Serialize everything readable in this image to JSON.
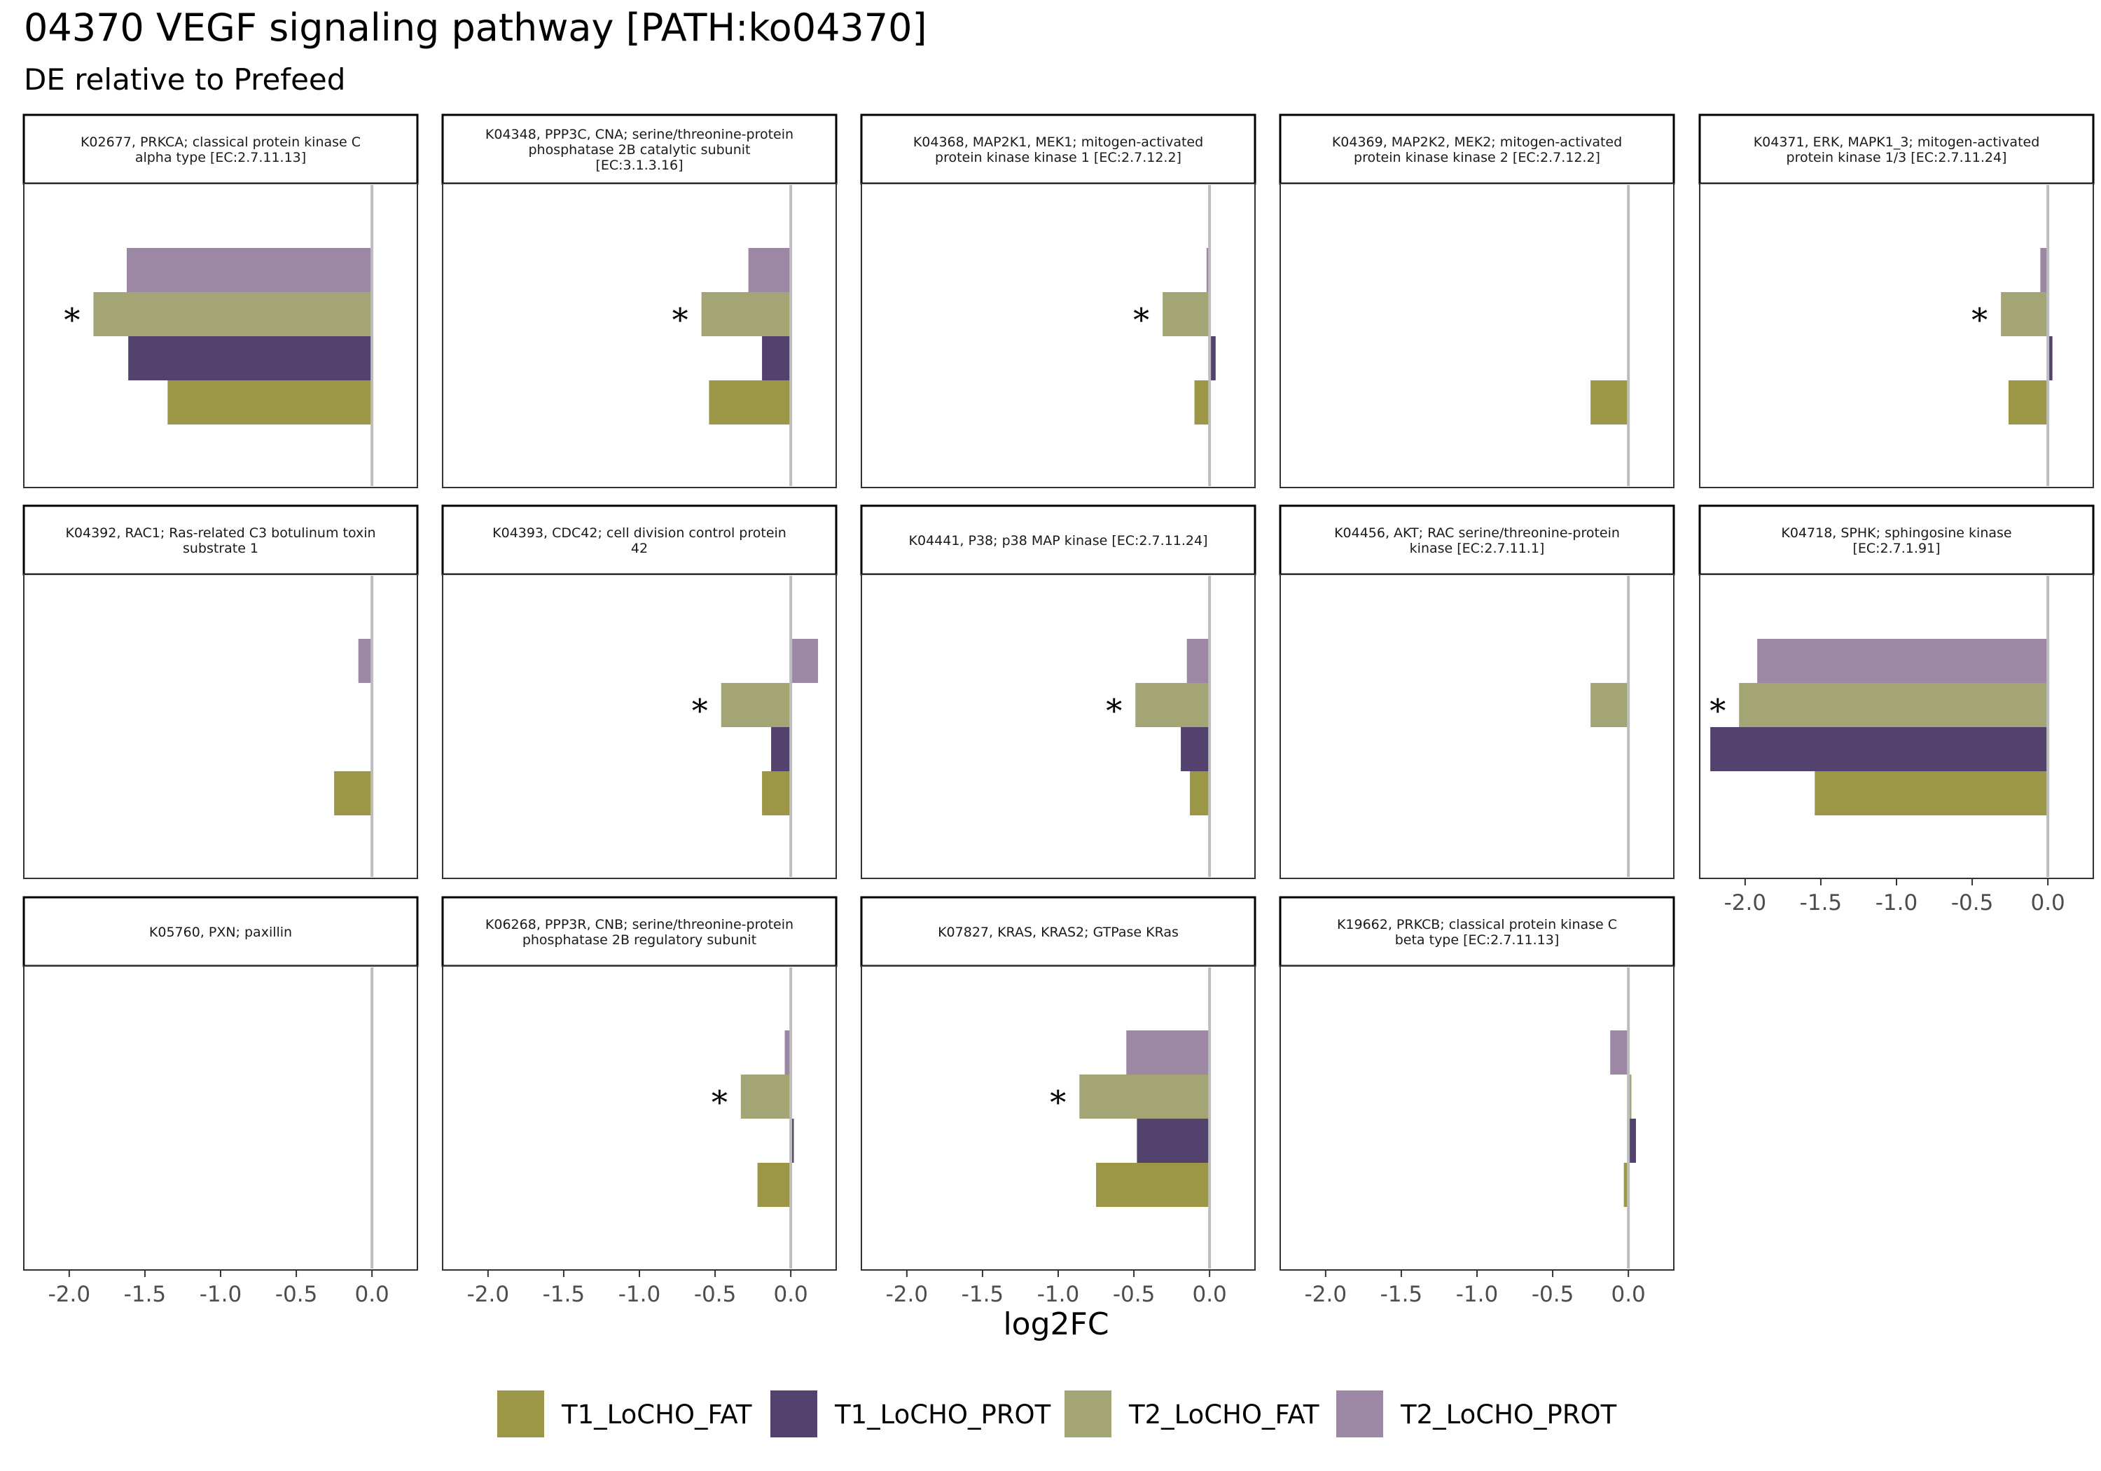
{
  "chart_data": {
    "type": "bar",
    "orientation": "horizontal",
    "facet": "wrap",
    "title": "04370 VEGF signaling pathway [PATH:ko04370]",
    "subtitle": "DE relative to Prefeed",
    "xlabel": "log2FC",
    "xlim": [
      -2.3,
      0.3
    ],
    "x_ticks": [
      "-2.0",
      "-1.5",
      "-1.0",
      "-0.5",
      "0.0"
    ],
    "x_tick_values": [
      -2.0,
      -1.5,
      -1.0,
      -0.5,
      0.0
    ],
    "grid": false,
    "legend_position": "bottom",
    "series_names": [
      "T1_LoCHO_FAT",
      "T1_LoCHO_PROT",
      "T2_LoCHO_FAT",
      "T2_LoCHO_PROT"
    ],
    "colors": {
      "T1_LoCHO_FAT": "#9c9647",
      "T1_LoCHO_PROT": "#53426e",
      "T2_LoCHO_FAT": "#a3a575",
      "T2_LoCHO_PROT": "#9c88a5"
    },
    "significance_marker": "*",
    "panels": [
      {
        "label": "K02677, PRKCA; classical protein kinase C alpha type [EC:2.7.11.13]",
        "values": {
          "T2_LoCHO_PROT": -1.62,
          "T2_LoCHO_FAT": -1.84,
          "T1_LoCHO_PROT": -1.61,
          "T1_LoCHO_FAT": -1.35
        },
        "significant": "T2_LoCHO_FAT"
      },
      {
        "label": "K04348, PPP3C, CNA; serine/threonine-protein phosphatase 2B catalytic subunit [EC:3.1.3.16]",
        "values": {
          "T2_LoCHO_PROT": -0.28,
          "T2_LoCHO_FAT": -0.59,
          "T1_LoCHO_PROT": -0.19,
          "T1_LoCHO_FAT": -0.54
        },
        "significant": "T2_LoCHO_FAT"
      },
      {
        "label": "K04368, MAP2K1, MEK1; mitogen-activated protein kinase kinase 1 [EC:2.7.12.2]",
        "values": {
          "T2_LoCHO_PROT": -0.02,
          "T2_LoCHO_FAT": -0.31,
          "T1_LoCHO_PROT": 0.04,
          "T1_LoCHO_FAT": -0.1
        },
        "significant": "T2_LoCHO_FAT"
      },
      {
        "label": "K04369, MAP2K2, MEK2; mitogen-activated protein kinase kinase 2 [EC:2.7.12.2]",
        "values": {
          "T1_LoCHO_FAT": -0.25
        },
        "significant": null
      },
      {
        "label": "K04371, ERK, MAPK1_3; mitogen-activated protein kinase 1/3 [EC:2.7.11.24]",
        "values": {
          "T2_LoCHO_PROT": -0.05,
          "T2_LoCHO_FAT": -0.31,
          "T1_LoCHO_PROT": 0.03,
          "T1_LoCHO_FAT": -0.26
        },
        "significant": "T2_LoCHO_FAT"
      },
      {
        "label": "K04392, RAC1; Ras-related C3 botulinum toxin substrate 1",
        "values": {
          "T2_LoCHO_PROT": -0.09,
          "T1_LoCHO_FAT": -0.25
        },
        "significant": null
      },
      {
        "label": "K04393, CDC42; cell division control protein 42",
        "values": {
          "T2_LoCHO_PROT": 0.18,
          "T2_LoCHO_FAT": -0.46,
          "T1_LoCHO_PROT": -0.13,
          "T1_LoCHO_FAT": -0.19
        },
        "significant": "T2_LoCHO_FAT"
      },
      {
        "label": "K04441, P38; p38 MAP kinase [EC:2.7.11.24]",
        "values": {
          "T2_LoCHO_PROT": -0.15,
          "T2_LoCHO_FAT": -0.49,
          "T1_LoCHO_PROT": -0.19,
          "T1_LoCHO_FAT": -0.13
        },
        "significant": "T2_LoCHO_FAT"
      },
      {
        "label": "K04456, AKT; RAC serine/threonine-protein kinase [EC:2.7.11.1]",
        "values": {
          "T2_LoCHO_FAT": -0.25
        },
        "significant": null
      },
      {
        "label": "K04718, SPHK; sphingosine kinase [EC:2.7.1.91]",
        "values": {
          "T2_LoCHO_PROT": -1.92,
          "T2_LoCHO_FAT": -2.04,
          "T1_LoCHO_PROT": -2.23,
          "T1_LoCHO_FAT": -1.54
        },
        "significant": "T2_LoCHO_FAT"
      },
      {
        "label": "K05760, PXN; paxillin",
        "values": {},
        "significant": null
      },
      {
        "label": "K06268, PPP3R, CNB; serine/threonine-protein phosphatase 2B regulatory subunit",
        "values": {
          "T2_LoCHO_PROT": -0.04,
          "T2_LoCHO_FAT": -0.33,
          "T1_LoCHO_PROT": 0.02,
          "T1_LoCHO_FAT": -0.22
        },
        "significant": "T2_LoCHO_FAT"
      },
      {
        "label": "K07827, KRAS, KRAS2; GTPase KRas",
        "values": {
          "T2_LoCHO_PROT": -0.55,
          "T2_LoCHO_FAT": -0.86,
          "T1_LoCHO_PROT": -0.48,
          "T1_LoCHO_FAT": -0.75
        },
        "significant": "T2_LoCHO_FAT"
      },
      {
        "label": "K19662, PRKCB; classical protein kinase C beta type [EC:2.7.11.13]",
        "values": {
          "T2_LoCHO_PROT": -0.12,
          "T2_LoCHO_FAT": 0.02,
          "T1_LoCHO_PROT": 0.05,
          "T1_LoCHO_FAT": -0.03
        },
        "significant": null
      }
    ]
  }
}
